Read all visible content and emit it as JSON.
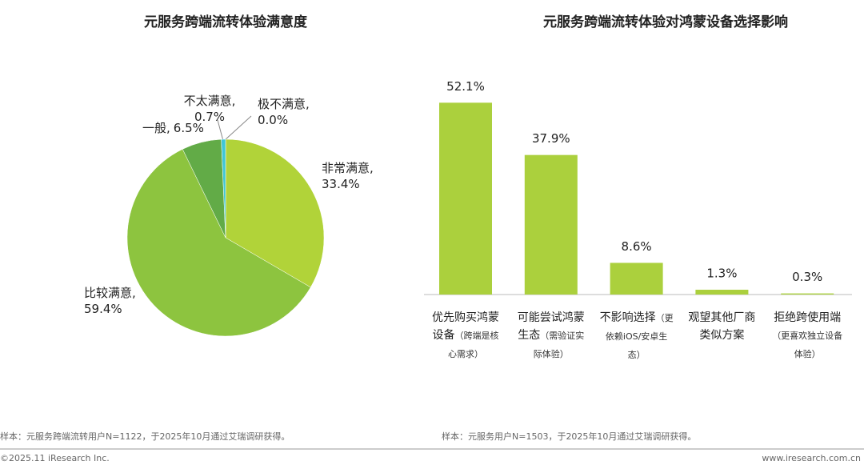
{
  "chart_data": [
    {
      "type": "pie",
      "title": "元服务跨端流转体验满意度",
      "categories": [
        "非常满意,",
        "比较满意,",
        "一般,",
        "不太满意,",
        "极不满意,"
      ],
      "values": [
        33.4,
        59.4,
        6.5,
        0.7,
        0.0
      ],
      "value_labels": [
        "33.4%",
        "59.4%",
        "6.5%",
        "0.7%",
        "0.0%"
      ],
      "colors": [
        "#b1d339",
        "#8dc43f",
        "#62ab47",
        "#3fc6d6",
        "#2f7fc1"
      ],
      "note": "样本：元服务跨端流转用户N=1122，于2025年10月通过艾瑞调研获得。"
    },
    {
      "type": "bar",
      "title": "元服务跨端流转体验对鸿蒙设备选择影响",
      "categories": [
        "优先购买鸿蒙设备",
        "可能尝试鸿蒙生态",
        "不影响选择",
        "观望其他厂商类似方案",
        "拒绝跨使用端"
      ],
      "category_notes": [
        "（跨端是核心需求）",
        "（需验证实际体验）",
        "（更依赖iOS/安卓生态）",
        null,
        "（更喜欢独立设备体验）"
      ],
      "values": [
        52.1,
        37.9,
        8.6,
        1.3,
        0.3
      ],
      "value_labels": [
        "52.1%",
        "37.9%",
        "8.6%",
        "1.3%",
        "0.3%"
      ],
      "color": "#abd03d",
      "note": "样本：元服务用户N=1503，于2025年10月通过艾瑞调研获得。"
    }
  ],
  "footer": {
    "copyright": "©2025.11 iResearch Inc.",
    "website": "www.iresearch.com.cn"
  }
}
